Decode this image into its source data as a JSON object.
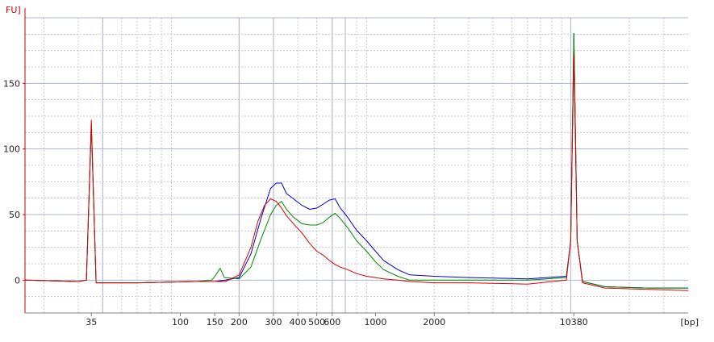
{
  "chart_data": {
    "type": "line",
    "title": "",
    "y_unit_label": "FU]",
    "x_unit_label": "[bp]",
    "x_scale": "log",
    "x_ticks": [
      "35",
      "100",
      "150",
      "200",
      "300",
      "400",
      "500",
      "600",
      "1000",
      "2000",
      "10380"
    ],
    "y_ticks": [
      "0",
      "50",
      "100",
      "150"
    ],
    "ylim": [
      -25,
      200
    ],
    "grid": true,
    "colors": {
      "axis": "#cc0000",
      "major_grid": "#aab4cc",
      "minor_grid": "#c8c8c8"
    },
    "series": [
      {
        "color": "#0000cc",
        "points": [
          [
            16,
            0
          ],
          [
            30,
            -1
          ],
          [
            33,
            0
          ],
          [
            35,
            118
          ],
          [
            37,
            -2
          ],
          [
            60,
            -2
          ],
          [
            120,
            -1
          ],
          [
            150,
            -1
          ],
          [
            170,
            0
          ],
          [
            200,
            2
          ],
          [
            230,
            20
          ],
          [
            260,
            48
          ],
          [
            290,
            70
          ],
          [
            310,
            74
          ],
          [
            330,
            74
          ],
          [
            350,
            66
          ],
          [
            380,
            62
          ],
          [
            420,
            57
          ],
          [
            460,
            54
          ],
          [
            500,
            55
          ],
          [
            540,
            58
          ],
          [
            580,
            61
          ],
          [
            620,
            62
          ],
          [
            660,
            55
          ],
          [
            720,
            48
          ],
          [
            800,
            38
          ],
          [
            900,
            30
          ],
          [
            1000,
            22
          ],
          [
            1100,
            15
          ],
          [
            1300,
            8
          ],
          [
            1500,
            4
          ],
          [
            2000,
            3
          ],
          [
            3000,
            2
          ],
          [
            6000,
            1
          ],
          [
            9500,
            3
          ],
          [
            10000,
            30
          ],
          [
            10380,
            188
          ],
          [
            10800,
            30
          ],
          [
            11500,
            -1
          ],
          [
            15000,
            -5
          ],
          [
            25000,
            -6
          ],
          [
            40000,
            -6
          ]
        ]
      },
      {
        "color": "#008800",
        "points": [
          [
            16,
            0
          ],
          [
            30,
            -1
          ],
          [
            33,
            0
          ],
          [
            35,
            118
          ],
          [
            37,
            -2
          ],
          [
            60,
            -2
          ],
          [
            120,
            -1
          ],
          [
            145,
            0
          ],
          [
            152,
            4
          ],
          [
            160,
            9
          ],
          [
            168,
            2
          ],
          [
            200,
            1
          ],
          [
            230,
            10
          ],
          [
            260,
            32
          ],
          [
            290,
            50
          ],
          [
            310,
            57
          ],
          [
            330,
            60
          ],
          [
            350,
            54
          ],
          [
            380,
            48
          ],
          [
            420,
            43
          ],
          [
            460,
            42
          ],
          [
            500,
            42
          ],
          [
            540,
            44
          ],
          [
            580,
            48
          ],
          [
            620,
            51
          ],
          [
            660,
            47
          ],
          [
            720,
            40
          ],
          [
            800,
            30
          ],
          [
            900,
            22
          ],
          [
            1000,
            14
          ],
          [
            1100,
            8
          ],
          [
            1300,
            3
          ],
          [
            1500,
            0
          ],
          [
            2000,
            0
          ],
          [
            3000,
            0
          ],
          [
            6000,
            0
          ],
          [
            9500,
            2
          ],
          [
            10000,
            30
          ],
          [
            10380,
            188
          ],
          [
            10800,
            30
          ],
          [
            11500,
            -1
          ],
          [
            15000,
            -5
          ],
          [
            25000,
            -6
          ],
          [
            40000,
            -6
          ]
        ]
      },
      {
        "color": "#dd0000",
        "points": [
          [
            16,
            0
          ],
          [
            30,
            -1
          ],
          [
            33,
            0
          ],
          [
            35,
            122
          ],
          [
            37,
            -2
          ],
          [
            60,
            -2
          ],
          [
            120,
            -1
          ],
          [
            150,
            -1
          ],
          [
            170,
            -1
          ],
          [
            200,
            4
          ],
          [
            230,
            25
          ],
          [
            250,
            45
          ],
          [
            270,
            57
          ],
          [
            290,
            62
          ],
          [
            310,
            60
          ],
          [
            330,
            55
          ],
          [
            350,
            49
          ],
          [
            380,
            43
          ],
          [
            420,
            36
          ],
          [
            460,
            28
          ],
          [
            500,
            22
          ],
          [
            540,
            19
          ],
          [
            580,
            15
          ],
          [
            620,
            12
          ],
          [
            660,
            10
          ],
          [
            720,
            8
          ],
          [
            800,
            5
          ],
          [
            900,
            3
          ],
          [
            1000,
            2
          ],
          [
            1100,
            1
          ],
          [
            1300,
            0
          ],
          [
            1500,
            -1
          ],
          [
            2000,
            -2
          ],
          [
            3000,
            -2
          ],
          [
            6000,
            -3
          ],
          [
            9500,
            0
          ],
          [
            10000,
            30
          ],
          [
            10380,
            172
          ],
          [
            10800,
            30
          ],
          [
            11500,
            -2
          ],
          [
            15000,
            -6
          ],
          [
            25000,
            -7
          ],
          [
            40000,
            -8
          ]
        ]
      }
    ]
  }
}
